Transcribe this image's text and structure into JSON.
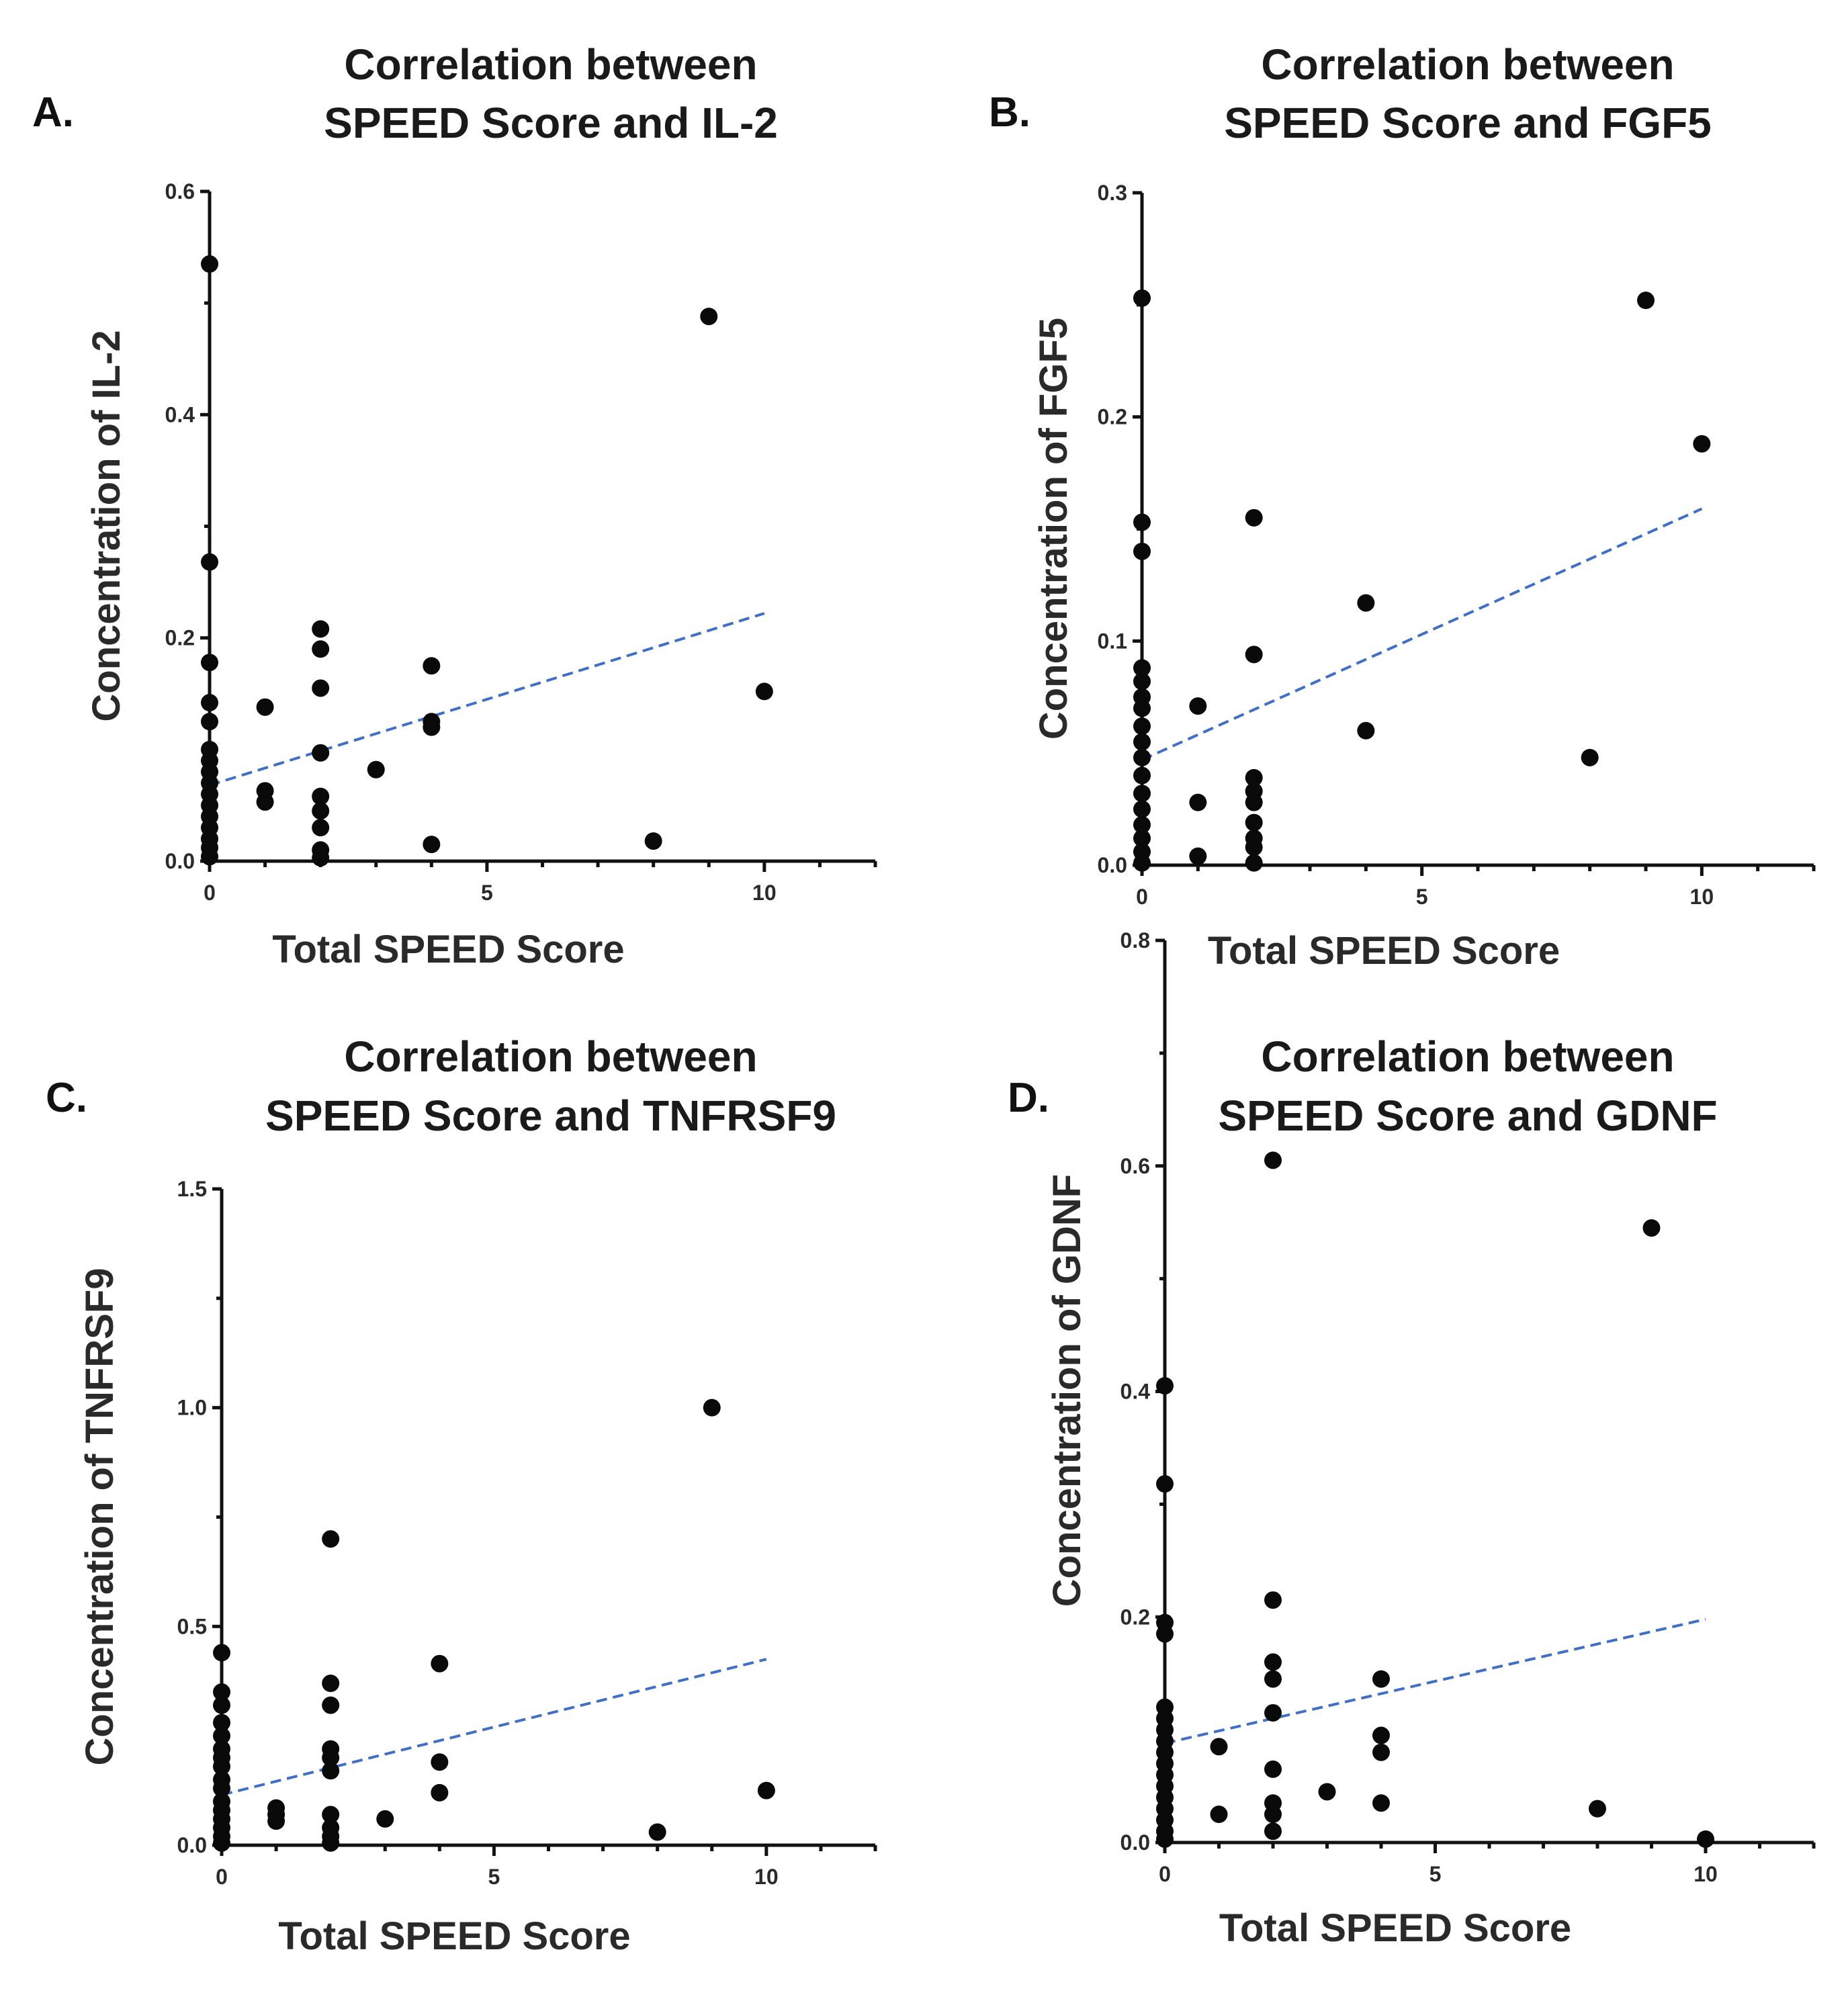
{
  "chart_data": [
    {
      "type": "scatter",
      "panel_label": "A.",
      "title_line1": "Correlation between",
      "title_line2": "SPEED Score and IL-2",
      "xlabel": "Total SPEED Score",
      "ylabel": "Concentration of IL-2",
      "xlim": [
        0,
        12
      ],
      "ylim": [
        0,
        0.6
      ],
      "xticks": [
        {
          "v": 0,
          "label": "0"
        },
        {
          "v": 5,
          "label": "5"
        },
        {
          "v": 10,
          "label": "10"
        }
      ],
      "yticks": [
        {
          "v": 0,
          "label": "0.0"
        },
        {
          "v": 0.2,
          "label": "0.2"
        },
        {
          "v": 0.4,
          "label": "0.4"
        },
        {
          "v": 0.6,
          "label": "0.6"
        }
      ],
      "trendline": {
        "x": [
          0,
          10
        ],
        "y": [
          0.068,
          0.222
        ]
      },
      "points": [
        {
          "x": 0,
          "y": 0.535
        },
        {
          "x": 0,
          "y": 0.268
        },
        {
          "x": 0,
          "y": 0.178
        },
        {
          "x": 0,
          "y": 0.142
        },
        {
          "x": 0,
          "y": 0.125
        },
        {
          "x": 0,
          "y": 0.1
        },
        {
          "x": 0,
          "y": 0.09
        },
        {
          "x": 0,
          "y": 0.08
        },
        {
          "x": 0,
          "y": 0.07
        },
        {
          "x": 0,
          "y": 0.06
        },
        {
          "x": 0,
          "y": 0.05
        },
        {
          "x": 0,
          "y": 0.04
        },
        {
          "x": 0,
          "y": 0.03
        },
        {
          "x": 0,
          "y": 0.02
        },
        {
          "x": 0,
          "y": 0.012
        },
        {
          "x": 0,
          "y": 0.004
        },
        {
          "x": 1,
          "y": 0.138
        },
        {
          "x": 1,
          "y": 0.063
        },
        {
          "x": 1,
          "y": 0.053
        },
        {
          "x": 2,
          "y": 0.208
        },
        {
          "x": 2,
          "y": 0.19
        },
        {
          "x": 2,
          "y": 0.155
        },
        {
          "x": 2,
          "y": 0.097
        },
        {
          "x": 2,
          "y": 0.058
        },
        {
          "x": 2,
          "y": 0.045
        },
        {
          "x": 2,
          "y": 0.03
        },
        {
          "x": 2,
          "y": 0.01
        },
        {
          "x": 2,
          "y": 0.003
        },
        {
          "x": 3,
          "y": 0.082
        },
        {
          "x": 4,
          "y": 0.175
        },
        {
          "x": 4,
          "y": 0.125
        },
        {
          "x": 4,
          "y": 0.12
        },
        {
          "x": 4,
          "y": 0.015
        },
        {
          "x": 8,
          "y": 0.018
        },
        {
          "x": 9,
          "y": 0.488
        },
        {
          "x": 10,
          "y": 0.152
        }
      ]
    },
    {
      "type": "scatter",
      "panel_label": "B.",
      "title_line1": "Correlation between",
      "title_line2": "SPEED Score and FGF5",
      "xlabel": "Total SPEED Score",
      "ylabel": "Concentration of FGF5",
      "xlim": [
        0,
        12
      ],
      "ylim": [
        0,
        0.3
      ],
      "xticks": [
        {
          "v": 0,
          "label": "0"
        },
        {
          "v": 5,
          "label": "5"
        },
        {
          "v": 10,
          "label": "10"
        }
      ],
      "yticks": [
        {
          "v": 0,
          "label": "0.0"
        },
        {
          "v": 0.1,
          "label": "0.1"
        },
        {
          "v": 0.2,
          "label": "0.2"
        },
        {
          "v": 0.3,
          "label": "0.3"
        }
      ],
      "trendline": {
        "x": [
          0,
          10
        ],
        "y": [
          0.047,
          0.159
        ]
      },
      "points": [
        {
          "x": 0,
          "y": 0.253
        },
        {
          "x": 0,
          "y": 0.153
        },
        {
          "x": 0,
          "y": 0.14
        },
        {
          "x": 0,
          "y": 0.088
        },
        {
          "x": 0,
          "y": 0.082
        },
        {
          "x": 0,
          "y": 0.075
        },
        {
          "x": 0,
          "y": 0.07
        },
        {
          "x": 0,
          "y": 0.062
        },
        {
          "x": 0,
          "y": 0.055
        },
        {
          "x": 0,
          "y": 0.048
        },
        {
          "x": 0,
          "y": 0.04
        },
        {
          "x": 0,
          "y": 0.032
        },
        {
          "x": 0,
          "y": 0.025
        },
        {
          "x": 0,
          "y": 0.018
        },
        {
          "x": 0,
          "y": 0.012
        },
        {
          "x": 0,
          "y": 0.006
        },
        {
          "x": 0,
          "y": 0.001
        },
        {
          "x": 1,
          "y": 0.071
        },
        {
          "x": 1,
          "y": 0.028
        },
        {
          "x": 1,
          "y": 0.004
        },
        {
          "x": 2,
          "y": 0.155
        },
        {
          "x": 2,
          "y": 0.094
        },
        {
          "x": 2,
          "y": 0.039
        },
        {
          "x": 2,
          "y": 0.033
        },
        {
          "x": 2,
          "y": 0.028
        },
        {
          "x": 2,
          "y": 0.019
        },
        {
          "x": 2,
          "y": 0.012
        },
        {
          "x": 2,
          "y": 0.008
        },
        {
          "x": 2,
          "y": 0.001
        },
        {
          "x": 4,
          "y": 0.117
        },
        {
          "x": 4,
          "y": 0.06
        },
        {
          "x": 8,
          "y": 0.048
        },
        {
          "x": 9,
          "y": 0.252
        },
        {
          "x": 10,
          "y": 0.188
        }
      ]
    },
    {
      "type": "scatter",
      "panel_label": "C.",
      "title_line1": "Correlation between",
      "title_line2": "SPEED Score and TNFRSF9",
      "xlabel": "Total SPEED Score",
      "ylabel": "Concentration of TNFRSF9",
      "xlim": [
        0,
        12
      ],
      "ylim": [
        0,
        1.5
      ],
      "xticks": [
        {
          "v": 0,
          "label": "0"
        },
        {
          "v": 5,
          "label": "5"
        },
        {
          "v": 10,
          "label": "10"
        }
      ],
      "yticks": [
        {
          "v": 0,
          "label": "0.0"
        },
        {
          "v": 0.5,
          "label": "0.5"
        },
        {
          "v": 1.0,
          "label": "1.0"
        },
        {
          "v": 1.5,
          "label": "1.5"
        }
      ],
      "trendline": {
        "x": [
          0,
          10
        ],
        "y": [
          0.115,
          0.425
        ]
      },
      "points": [
        {
          "x": 0,
          "y": 0.44
        },
        {
          "x": 0,
          "y": 0.35
        },
        {
          "x": 0,
          "y": 0.32
        },
        {
          "x": 0,
          "y": 0.28
        },
        {
          "x": 0,
          "y": 0.25
        },
        {
          "x": 0,
          "y": 0.22
        },
        {
          "x": 0,
          "y": 0.2
        },
        {
          "x": 0,
          "y": 0.18
        },
        {
          "x": 0,
          "y": 0.15
        },
        {
          "x": 0,
          "y": 0.13
        },
        {
          "x": 0,
          "y": 0.1
        },
        {
          "x": 0,
          "y": 0.08
        },
        {
          "x": 0,
          "y": 0.06
        },
        {
          "x": 0,
          "y": 0.04
        },
        {
          "x": 0,
          "y": 0.02
        },
        {
          "x": 0,
          "y": 0.005
        },
        {
          "x": 1,
          "y": 0.085
        },
        {
          "x": 1,
          "y": 0.07
        },
        {
          "x": 1,
          "y": 0.055
        },
        {
          "x": 2,
          "y": 0.7
        },
        {
          "x": 2,
          "y": 0.37
        },
        {
          "x": 2,
          "y": 0.32
        },
        {
          "x": 2,
          "y": 0.22
        },
        {
          "x": 2,
          "y": 0.2
        },
        {
          "x": 2,
          "y": 0.17
        },
        {
          "x": 2,
          "y": 0.07
        },
        {
          "x": 2,
          "y": 0.04
        },
        {
          "x": 2,
          "y": 0.02
        },
        {
          "x": 2,
          "y": 0.005
        },
        {
          "x": 3,
          "y": 0.06
        },
        {
          "x": 4,
          "y": 0.415
        },
        {
          "x": 4,
          "y": 0.19
        },
        {
          "x": 4,
          "y": 0.12
        },
        {
          "x": 8,
          "y": 0.03
        },
        {
          "x": 9,
          "y": 1.0
        },
        {
          "x": 10,
          "y": 0.125
        }
      ]
    },
    {
      "type": "scatter",
      "panel_label": "D.",
      "title_line1": "Correlation between",
      "title_line2": "SPEED Score and GDNF",
      "xlabel": "Total SPEED Score",
      "ylabel": "Concentration of GDNF",
      "xlim": [
        0,
        12
      ],
      "ylim": [
        0,
        0.8
      ],
      "xticks": [
        {
          "v": 0,
          "label": "0"
        },
        {
          "v": 5,
          "label": "5"
        },
        {
          "v": 10,
          "label": "10"
        }
      ],
      "yticks": [
        {
          "v": 0,
          "label": "0.0"
        },
        {
          "v": 0.2,
          "label": "0.2"
        },
        {
          "v": 0.4,
          "label": "0.4"
        },
        {
          "v": 0.6,
          "label": "0.6"
        },
        {
          "v": 0.8,
          "label": "0.8"
        }
      ],
      "trendline": {
        "x": [
          0,
          10
        ],
        "y": [
          0.088,
          0.198
        ]
      },
      "points": [
        {
          "x": 0,
          "y": 0.405
        },
        {
          "x": 0,
          "y": 0.318
        },
        {
          "x": 0,
          "y": 0.195
        },
        {
          "x": 0,
          "y": 0.185
        },
        {
          "x": 0,
          "y": 0.12
        },
        {
          "x": 0,
          "y": 0.11
        },
        {
          "x": 0,
          "y": 0.1
        },
        {
          "x": 0,
          "y": 0.09
        },
        {
          "x": 0,
          "y": 0.08
        },
        {
          "x": 0,
          "y": 0.07
        },
        {
          "x": 0,
          "y": 0.06
        },
        {
          "x": 0,
          "y": 0.05
        },
        {
          "x": 0,
          "y": 0.04
        },
        {
          "x": 0,
          "y": 0.03
        },
        {
          "x": 0,
          "y": 0.02
        },
        {
          "x": 0,
          "y": 0.01
        },
        {
          "x": 0,
          "y": 0.003
        },
        {
          "x": 1,
          "y": 0.085
        },
        {
          "x": 1,
          "y": 0.025
        },
        {
          "x": 2,
          "y": 0.605
        },
        {
          "x": 2,
          "y": 0.215
        },
        {
          "x": 2,
          "y": 0.16
        },
        {
          "x": 2,
          "y": 0.145
        },
        {
          "x": 2,
          "y": 0.115
        },
        {
          "x": 2,
          "y": 0.065
        },
        {
          "x": 2,
          "y": 0.035
        },
        {
          "x": 2,
          "y": 0.025
        },
        {
          "x": 2,
          "y": 0.01
        },
        {
          "x": 3,
          "y": 0.045
        },
        {
          "x": 4,
          "y": 0.145
        },
        {
          "x": 4,
          "y": 0.095
        },
        {
          "x": 4,
          "y": 0.08
        },
        {
          "x": 4,
          "y": 0.035
        },
        {
          "x": 8,
          "y": 0.03
        },
        {
          "x": 9,
          "y": 0.545
        },
        {
          "x": 10,
          "y": 0.003
        }
      ]
    }
  ]
}
